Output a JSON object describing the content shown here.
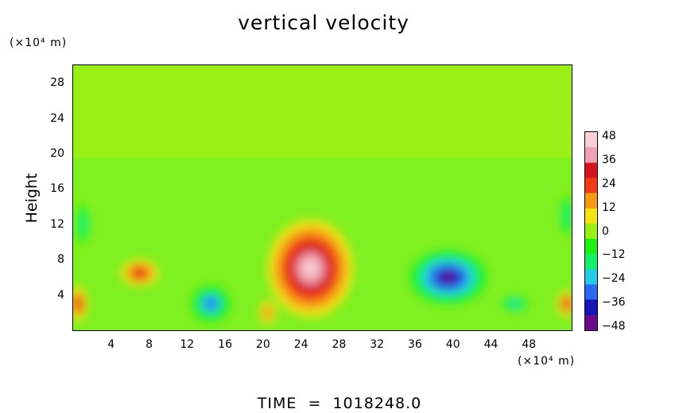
{
  "chart_data": {
    "type": "heatmap",
    "title": "vertical velocity",
    "ylabel": "Height",
    "x_unit": "(×10⁴ m)",
    "y_unit": "(×10⁴ m)",
    "xlim": [
      0,
      52.5
    ],
    "ylim": [
      0,
      30
    ],
    "x_ticks": [
      4,
      8,
      12,
      16,
      20,
      24,
      28,
      32,
      36,
      40,
      44,
      48
    ],
    "y_ticks": [
      4,
      8,
      12,
      16,
      20,
      24,
      28
    ],
    "colorbar": {
      "ticks": [
        48,
        36,
        24,
        12,
        0,
        -12,
        -24,
        -36,
        -48
      ],
      "range": [
        -48,
        48
      ],
      "colors": [
        "#6a0a8a",
        "#1515b5",
        "#2a6af5",
        "#27c9e8",
        "#14f06a",
        "#1ff014",
        "#9af014",
        "#f5e214",
        "#f59a14",
        "#f03a14",
        "#d4141e",
        "#f0a0b0",
        "#fbd0d4"
      ]
    },
    "background_value": 0,
    "features": [
      {
        "kind": "updraft",
        "x": 25,
        "y": 7,
        "rx": 4.5,
        "ry": 5.5,
        "peak": 48
      },
      {
        "kind": "updraft",
        "x": 7,
        "y": 6.5,
        "rx": 2.0,
        "ry": 1.5,
        "peak": 30
      },
      {
        "kind": "updraft",
        "x": 0.5,
        "y": 3,
        "rx": 1.0,
        "ry": 2.0,
        "peak": 30
      },
      {
        "kind": "updraft",
        "x": 52,
        "y": 3,
        "rx": 1.0,
        "ry": 1.5,
        "peak": 30
      },
      {
        "kind": "updraft",
        "x": 20.5,
        "y": 2,
        "rx": 1.0,
        "ry": 1.5,
        "peak": 22
      },
      {
        "kind": "downdraft",
        "x": 39.5,
        "y": 6,
        "rx": 4.0,
        "ry": 3.0,
        "peak": -46
      },
      {
        "kind": "downdraft",
        "x": 14.5,
        "y": 3,
        "rx": 2.0,
        "ry": 2.0,
        "peak": -36
      },
      {
        "kind": "downdraft",
        "x": 46.5,
        "y": 3,
        "rx": 2.0,
        "ry": 1.2,
        "peak": -24
      },
      {
        "kind": "downdraft",
        "x": 1,
        "y": 12,
        "rx": 1.0,
        "ry": 3.0,
        "peak": -20
      },
      {
        "kind": "downdraft",
        "x": 52,
        "y": 13,
        "rx": 1.0,
        "ry": 3.0,
        "peak": -20
      }
    ],
    "time_label": "TIME",
    "time_value": "1018248.0"
  }
}
